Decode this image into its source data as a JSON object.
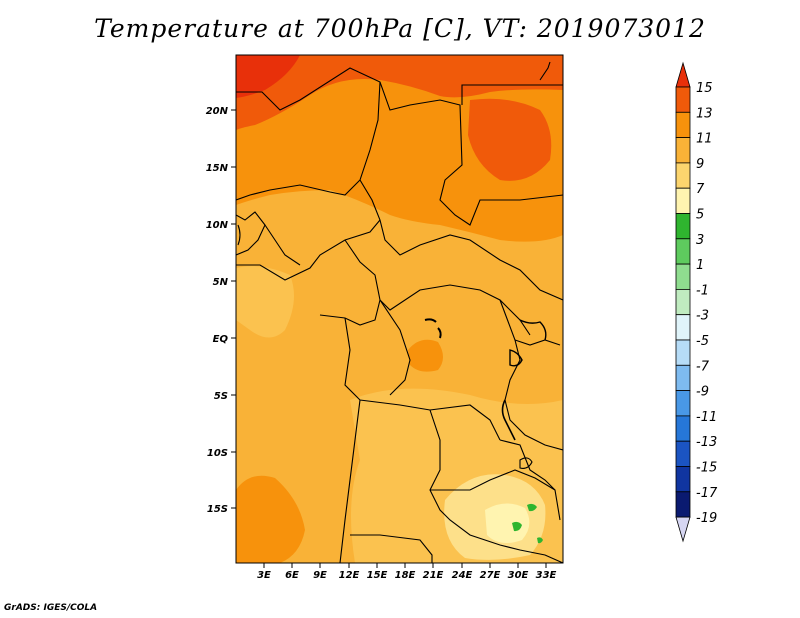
{
  "title": "Temperature at 700hPa [C], VT: 2019073012",
  "credit": "GrADS: IGES/COLA",
  "map": {
    "lat_labels": [
      "20N",
      "15N",
      "10N",
      "5N",
      "EQ",
      "5S",
      "10S",
      "15S"
    ],
    "lon_labels": [
      "3E",
      "6E",
      "9E",
      "12E",
      "15E",
      "18E",
      "21E",
      "24E",
      "27E",
      "30E",
      "33E"
    ]
  },
  "colorbar": {
    "levels": [
      "15",
      "13",
      "11",
      "9",
      "7",
      "5",
      "3",
      "1",
      "-1",
      "-3",
      "-5",
      "-7",
      "-9",
      "-11",
      "-13",
      "-15",
      "-17",
      "-19"
    ],
    "colors": [
      "#e8300a",
      "#f05a0a",
      "#f7920c",
      "#f9b237",
      "#fcd56e",
      "#fff4b0",
      "#2fb52f",
      "#5ecb5e",
      "#8fdd8f",
      "#c0ecc0",
      "#e0f4fa",
      "#b6dcf7",
      "#7ebbf0",
      "#4998e6",
      "#2677d8",
      "#1b54c2",
      "#1035a0",
      "#0a1a70",
      "#d6d6f2"
    ]
  }
}
